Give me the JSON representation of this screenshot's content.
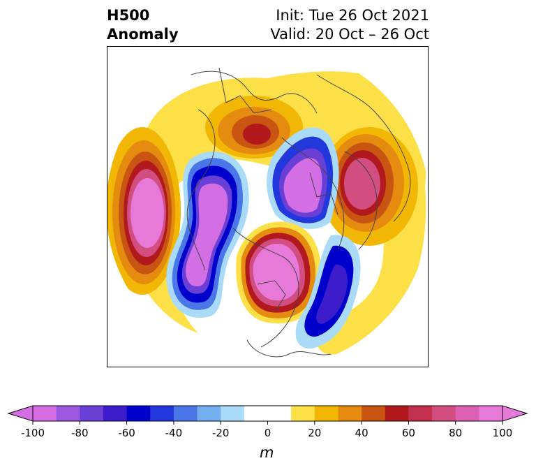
{
  "title": {
    "left_line1": "H500",
    "left_line2": "Anomaly",
    "right_line1": "Init: Tue 26 Oct 2021",
    "right_line2": "Valid: 20 Oct – 26 Oct"
  },
  "colorbar": {
    "levels": [
      -100,
      -90,
      -80,
      -70,
      -60,
      -50,
      -40,
      -30,
      -20,
      -10,
      10,
      20,
      30,
      40,
      50,
      60,
      70,
      80,
      90,
      100
    ],
    "colors": [
      "#d36ee5",
      "#9d58e0",
      "#6a3fd6",
      "#3d1ccc",
      "#0000cc",
      "#2238dd",
      "#4a76e8",
      "#72aef0",
      "#a9dbf8",
      "#ffffff",
      "#fde047",
      "#f2b705",
      "#e48b10",
      "#c85512",
      "#b2191e",
      "#c2304e",
      "#d24d80",
      "#dc60b3",
      "#e77ad9"
    ],
    "under_color": "#d36ee5",
    "over_color": "#e77ad9",
    "tick_labels": [
      "-100",
      "-80",
      "-60",
      "-40",
      "-20",
      "0",
      "20",
      "40",
      "60",
      "80",
      "100"
    ],
    "units": "m"
  }
}
